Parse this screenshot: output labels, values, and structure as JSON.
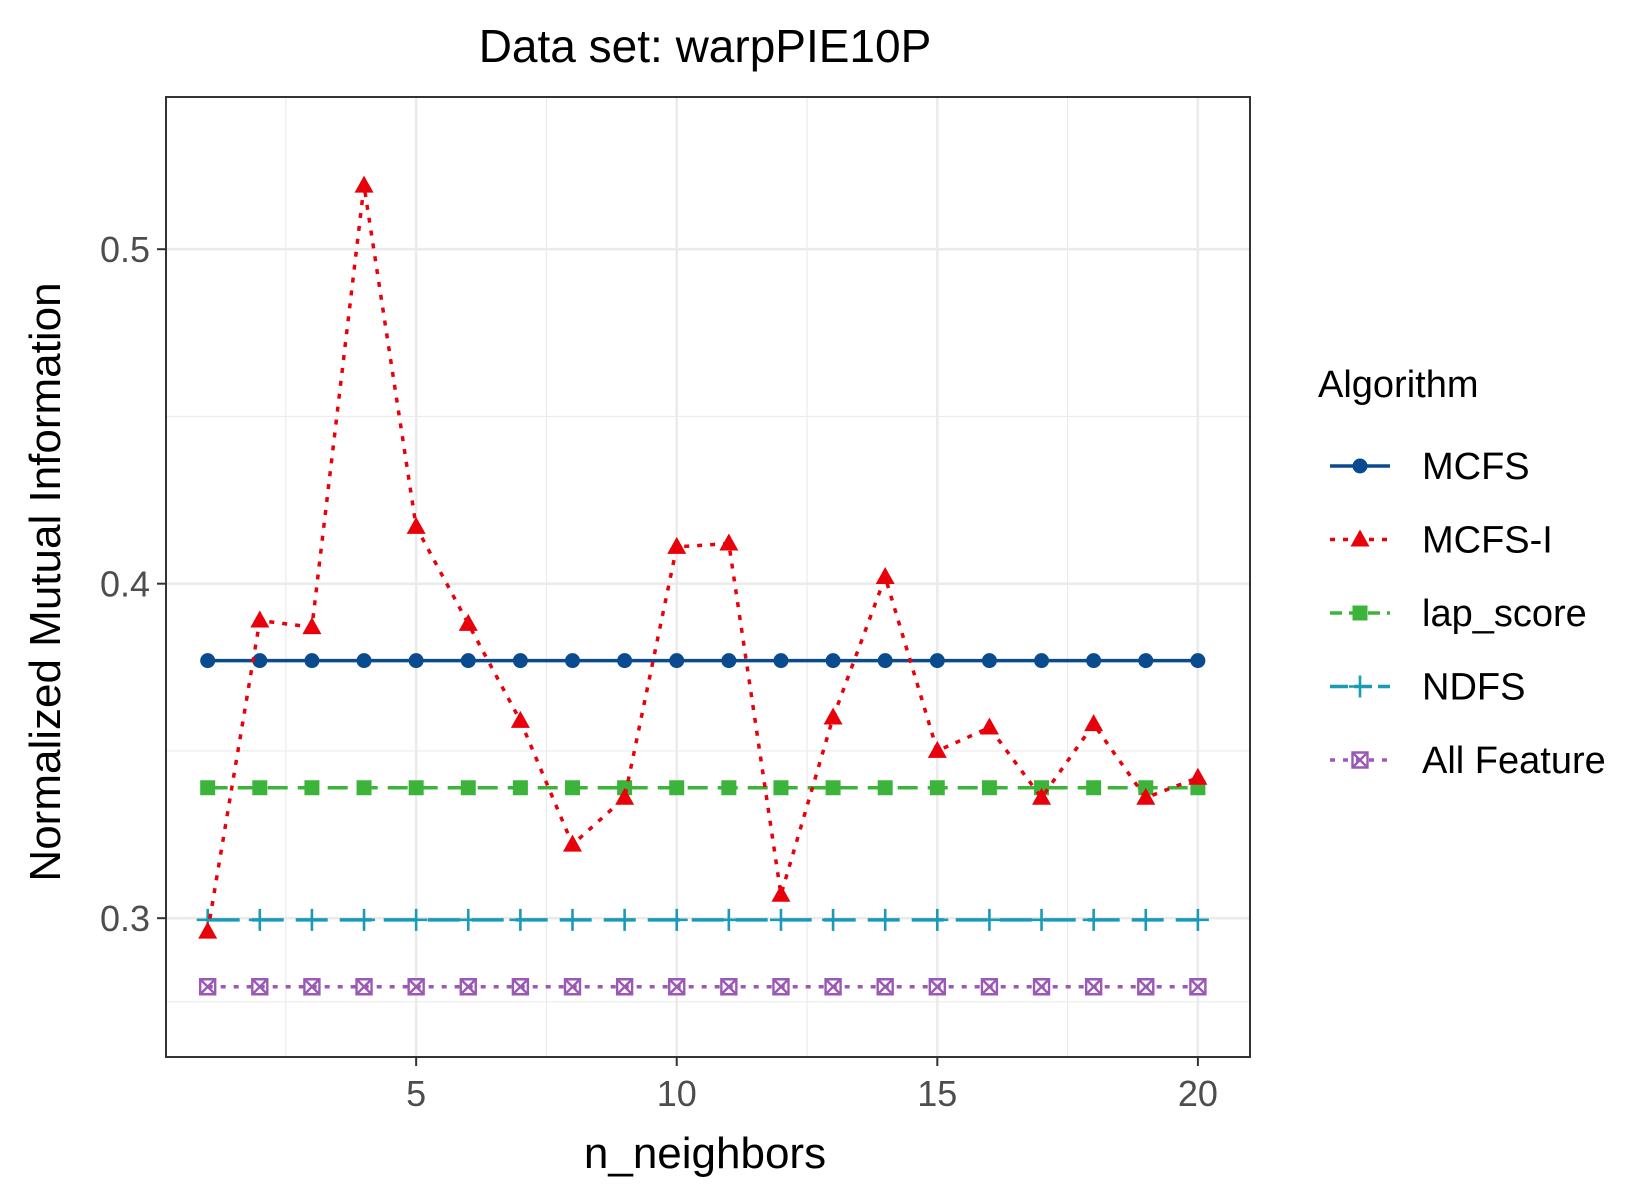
{
  "chart_data": {
    "type": "line",
    "title": "Data set: warpPIE10P",
    "xlabel": "n_neighbors",
    "ylabel": "Normalized Mutual Information",
    "xlim": [
      0.2,
      21.0
    ],
    "ylim": [
      0.2585,
      0.5455
    ],
    "x_ticks": [
      5,
      10,
      15,
      20
    ],
    "y_ticks": [
      0.3,
      0.4,
      0.5
    ],
    "x_tick_labels": [
      "5",
      "10",
      "15",
      "20"
    ],
    "y_tick_labels": [
      "0.3",
      "0.4",
      "0.5"
    ],
    "grid": true,
    "legend_title": "Algorithm",
    "legend_position": "right",
    "x": [
      1,
      2,
      3,
      4,
      5,
      6,
      7,
      8,
      9,
      10,
      11,
      12,
      13,
      14,
      15,
      16,
      17,
      18,
      19,
      20
    ],
    "series": [
      {
        "name": "MCFS",
        "color": "#0a4a8f",
        "line_style": "solid",
        "marker": "circle",
        "values": [
          0.377,
          0.377,
          0.377,
          0.377,
          0.377,
          0.377,
          0.377,
          0.377,
          0.377,
          0.377,
          0.377,
          0.377,
          0.377,
          0.377,
          0.377,
          0.377,
          0.377,
          0.377,
          0.377,
          0.377
        ]
      },
      {
        "name": "MCFS-I",
        "color": "#e8000b",
        "line_style": "dotted",
        "marker": "triangle",
        "values": [
          0.296,
          0.389,
          0.387,
          0.519,
          0.417,
          0.388,
          0.359,
          0.322,
          0.336,
          0.411,
          0.412,
          0.307,
          0.36,
          0.402,
          0.35,
          0.357,
          0.336,
          0.358,
          0.336,
          0.342
        ]
      },
      {
        "name": "lap_score",
        "color": "#3cb43c",
        "line_style": "dashed",
        "marker": "square",
        "values": [
          0.339,
          0.339,
          0.339,
          0.339,
          0.339,
          0.339,
          0.339,
          0.339,
          0.339,
          0.339,
          0.339,
          0.339,
          0.339,
          0.339,
          0.339,
          0.339,
          0.339,
          0.339,
          0.339,
          0.339
        ]
      },
      {
        "name": "NDFS",
        "color": "#1a9bb5",
        "line_style": "longdash",
        "marker": "plus",
        "values": [
          0.2995,
          0.2995,
          0.2995,
          0.2995,
          0.2995,
          0.2995,
          0.2995,
          0.2995,
          0.2995,
          0.2995,
          0.2995,
          0.2995,
          0.2995,
          0.2995,
          0.2995,
          0.2995,
          0.2995,
          0.2995,
          0.2995,
          0.2995
        ]
      },
      {
        "name": "All Feature",
        "color": "#9b59b6",
        "line_style": "dotted",
        "marker": "boxed-x",
        "values": [
          0.2795,
          0.2795,
          0.2795,
          0.2795,
          0.2795,
          0.2795,
          0.2795,
          0.2795,
          0.2795,
          0.2795,
          0.2795,
          0.2795,
          0.2795,
          0.2795,
          0.2795,
          0.2795,
          0.2795,
          0.2795,
          0.2795,
          0.2795
        ]
      }
    ]
  }
}
